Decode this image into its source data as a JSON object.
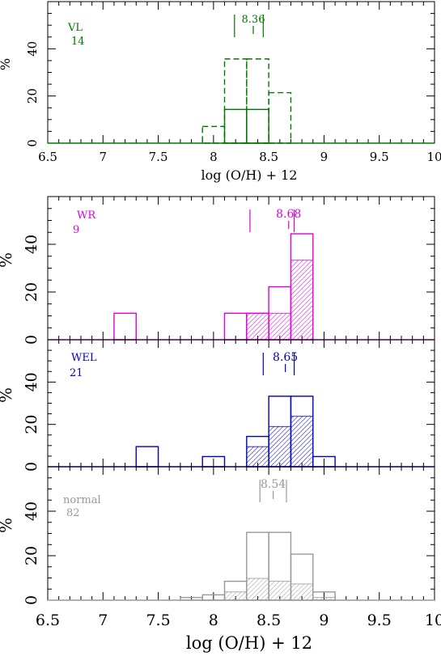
{
  "chart_data": [
    {
      "type": "histogram",
      "xlabel": "log (O/H)  +  12",
      "ylabel": "%",
      "xlim": [
        6.5,
        10
      ],
      "ylim": [
        0,
        60
      ],
      "xticks_labels": [
        "6.5",
        "7",
        "7.5",
        "8",
        "8.5",
        "9",
        "9.5",
        "10"
      ],
      "yticks_labels": [
        "0",
        "20",
        "40"
      ],
      "color": "#007700",
      "label": "VL",
      "count": "14",
      "median_label": "8.36",
      "markers": [
        8.19,
        8.36,
        8.45
      ],
      "series": [
        {
          "style": "solid",
          "bins": [
            [
              8.1,
              8.3,
              14.3
            ],
            [
              8.3,
              8.5,
              14.3
            ]
          ]
        },
        {
          "style": "dashed",
          "bins": [
            [
              7.9,
              8.1,
              7.1
            ],
            [
              8.1,
              8.3,
              35.7
            ],
            [
              8.3,
              8.5,
              35.7
            ],
            [
              8.5,
              8.7,
              21.4
            ]
          ]
        }
      ]
    },
    {
      "type": "histogram",
      "ylabel": "%",
      "xlim": [
        6.5,
        10
      ],
      "ylim": [
        0,
        60
      ],
      "yticks_labels": [
        "0",
        "20",
        "40"
      ],
      "color": "#dd00dd",
      "label": "WR",
      "count": "9",
      "median_label": "8.68",
      "markers": [
        8.33,
        8.68,
        8.73
      ],
      "series": [
        {
          "style": "solid",
          "bins": [
            [
              7.1,
              7.3,
              11.1
            ],
            [
              8.1,
              8.3,
              11.1
            ],
            [
              8.3,
              8.5,
              11.1
            ],
            [
              8.5,
              8.7,
              22.2
            ],
            [
              8.7,
              8.9,
              44.4
            ]
          ]
        },
        {
          "style": "hatched",
          "bins": [
            [
              8.3,
              8.5,
              11.1
            ],
            [
              8.5,
              8.7,
              11.1
            ],
            [
              8.7,
              8.9,
              33.3
            ]
          ]
        }
      ]
    },
    {
      "type": "histogram",
      "ylabel": "%",
      "xlim": [
        6.5,
        10
      ],
      "ylim": [
        0,
        60
      ],
      "yticks_labels": [
        "0",
        "20",
        "40"
      ],
      "color": "#0000cc",
      "label": "WEL",
      "count": "21",
      "median_label": "8.65",
      "markers": [
        8.45,
        8.65,
        8.73
      ],
      "series": [
        {
          "style": "solid",
          "bins": [
            [
              7.3,
              7.5,
              9.5
            ],
            [
              7.9,
              8.1,
              4.8
            ],
            [
              8.3,
              8.5,
              14.3
            ],
            [
              8.5,
              8.7,
              33.3
            ],
            [
              8.7,
              8.9,
              33.3
            ],
            [
              8.9,
              9.1,
              4.8
            ]
          ]
        },
        {
          "style": "hatched",
          "bins": [
            [
              8.3,
              8.5,
              9.5
            ],
            [
              8.5,
              8.7,
              19.0
            ],
            [
              8.7,
              8.9,
              23.8
            ]
          ]
        }
      ]
    },
    {
      "type": "histogram",
      "xlabel": "log (O/H)  +  12",
      "ylabel": "%",
      "xlim": [
        6.5,
        10
      ],
      "ylim": [
        0,
        60
      ],
      "xticks_labels": [
        "6.5",
        "7",
        "7.5",
        "8",
        "8.5",
        "9",
        "9.5",
        "10"
      ],
      "yticks_labels": [
        "0",
        "20",
        "40"
      ],
      "color": "#999999",
      "label": "normal",
      "count": "82",
      "median_label": "8.54",
      "markers": [
        8.42,
        8.54,
        8.66
      ],
      "series": [
        {
          "style": "solid",
          "bins": [
            [
              7.7,
              7.9,
              1.2
            ],
            [
              7.9,
              8.1,
              2.4
            ],
            [
              8.1,
              8.3,
              8.5
            ],
            [
              8.3,
              8.5,
              30.5
            ],
            [
              8.5,
              8.7,
              30.5
            ],
            [
              8.7,
              8.9,
              20.7
            ],
            [
              8.9,
              9.1,
              3.7
            ]
          ]
        },
        {
          "style": "hatched",
          "bins": [
            [
              8.1,
              8.3,
              3.7
            ],
            [
              8.3,
              8.5,
              9.8
            ],
            [
              8.5,
              8.7,
              8.5
            ],
            [
              8.7,
              8.9,
              7.3
            ],
            [
              8.9,
              9.1,
              1.2
            ]
          ]
        }
      ]
    }
  ]
}
